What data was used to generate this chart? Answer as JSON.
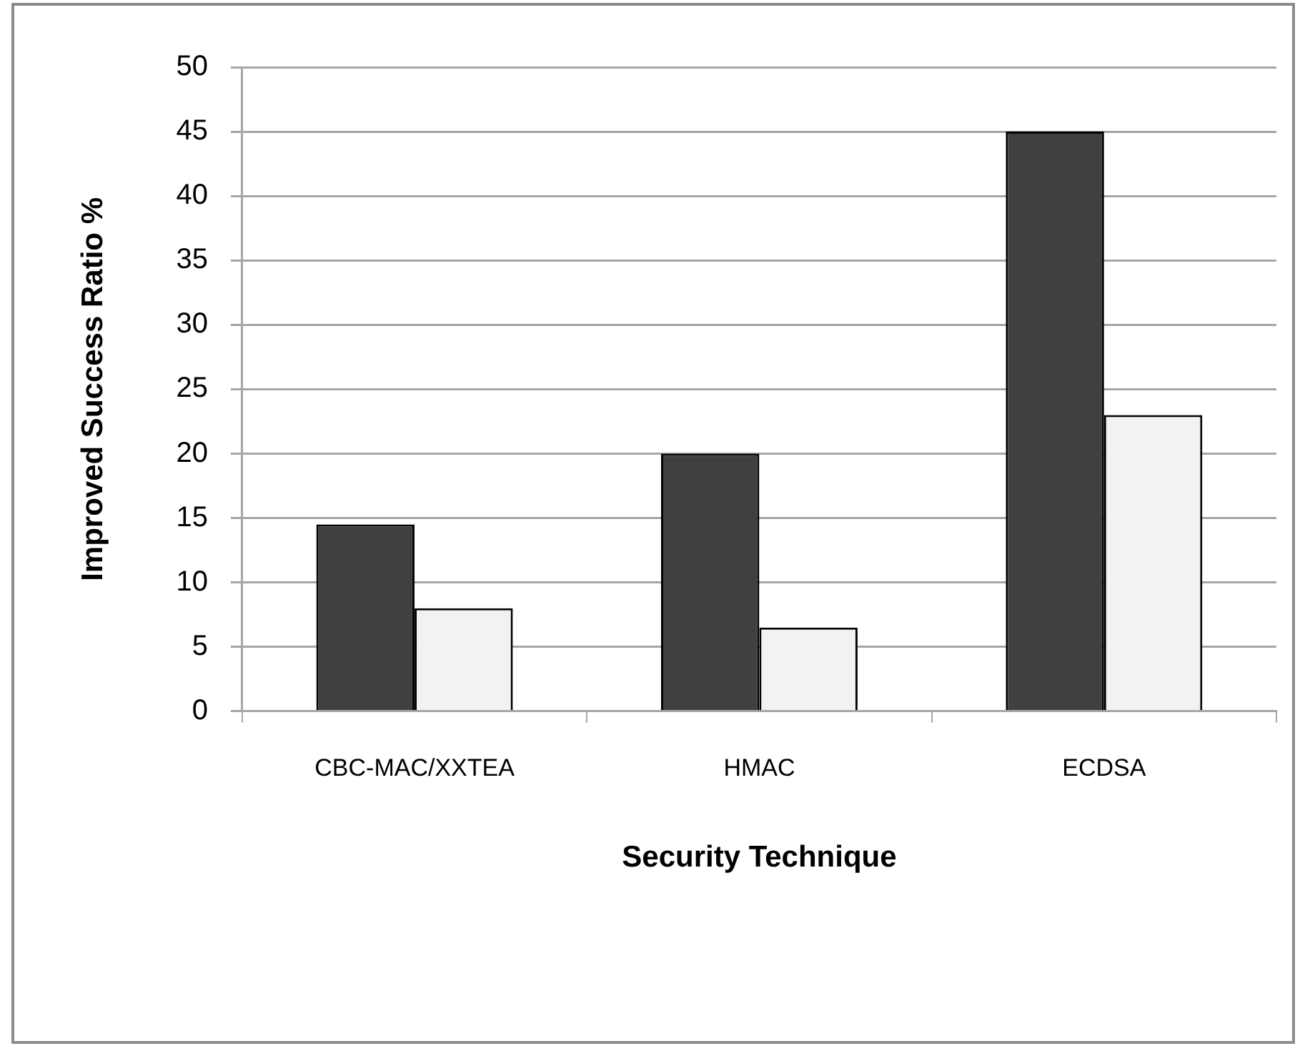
{
  "chart_data": {
    "type": "bar",
    "xlabel": "Security Technique",
    "ylabel": "Improved Success Ratio %",
    "categories": [
      "CBC-MAC/XXTEA",
      "HMAC",
      "ECDSA"
    ],
    "series": [
      {
        "color": "#404040",
        "values": [
          14.5,
          20,
          45
        ]
      },
      {
        "color": "#f2f2f2",
        "values": [
          8,
          6.5,
          23
        ]
      }
    ],
    "ylim": [
      0,
      50
    ],
    "yticks": [
      0,
      5,
      10,
      15,
      20,
      25,
      30,
      35,
      40,
      45,
      50
    ],
    "grid": "y"
  }
}
